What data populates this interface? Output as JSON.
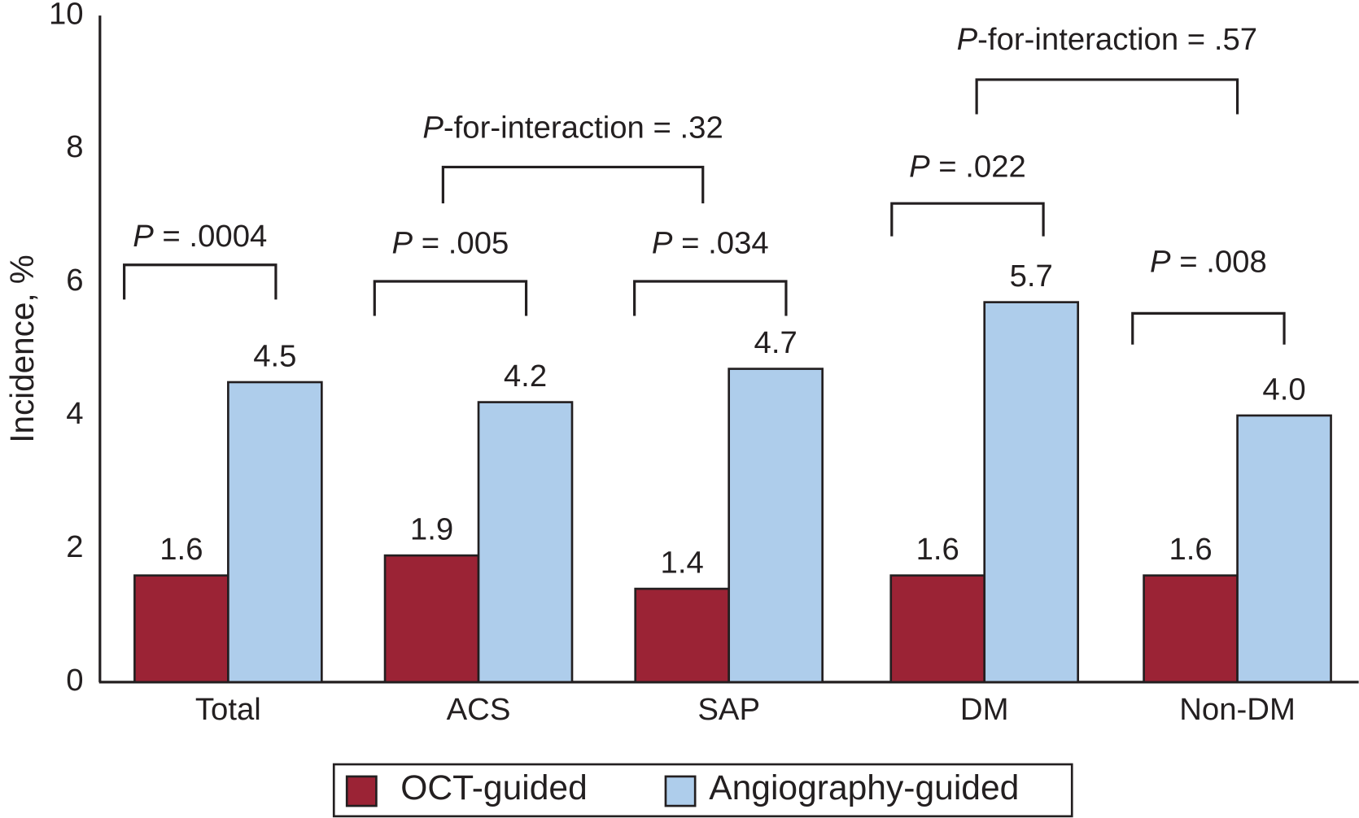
{
  "chart_data": {
    "type": "bar",
    "y_label": "Incidence, %",
    "categories": [
      "Total",
      "ACS",
      "SAP",
      "DM",
      "Non-DM"
    ],
    "series": [
      {
        "name": "OCT-guided",
        "color": "#9b2335",
        "values": [
          1.6,
          1.9,
          1.4,
          1.6,
          1.6
        ],
        "value_labels": [
          "1.6",
          "1.9",
          "1.4",
          "1.6",
          "1.6"
        ]
      },
      {
        "name": "Angiography-guided",
        "color": "#aecdeb",
        "values": [
          4.5,
          4.2,
          4.7,
          5.7,
          4.0
        ],
        "value_labels": [
          "4.5",
          "4.2",
          "4.7",
          "5.7",
          "4.0"
        ]
      }
    ],
    "ylim": [
      0,
      10
    ],
    "yticks": [
      0,
      2,
      4,
      6,
      8,
      10
    ],
    "annotations": [
      "P = .0004",
      "P = .005",
      "P = .034",
      "P = .022",
      "P = .008",
      "P-for-interaction = .32",
      "P-for-interaction = .57"
    ]
  }
}
